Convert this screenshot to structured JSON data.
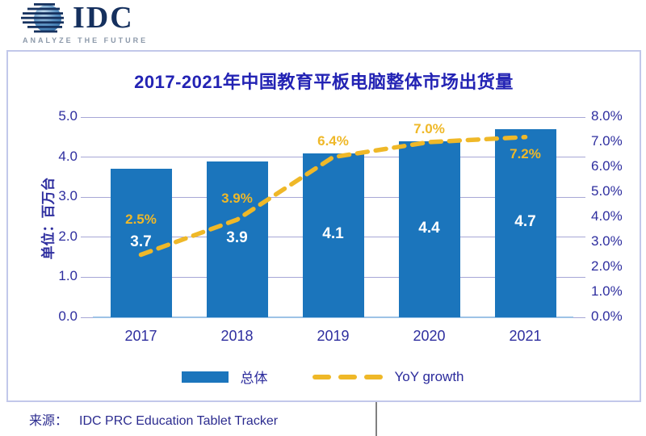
{
  "logo": {
    "brand": "IDC",
    "tagline": "ANALYZE THE FUTURE"
  },
  "chart": {
    "title": "2017-2021年中国教育平板电脑整体市场出货量",
    "y_axis_unit_label": "单位：百万台",
    "legend": [
      {
        "label": "总体"
      },
      {
        "label": "YoY growth"
      }
    ]
  },
  "chart_data": {
    "type": "bar+line",
    "title": "2017-2021年中国教育平板电脑整体市场出货量",
    "categories": [
      "2017",
      "2018",
      "2019",
      "2020",
      "2021"
    ],
    "series": [
      {
        "name": "总体",
        "type": "bar",
        "axis": "left",
        "values": [
          3.7,
          3.9,
          4.1,
          4.4,
          4.7
        ],
        "labels": [
          "3.7",
          "3.9",
          "4.1",
          "4.4",
          "4.7"
        ]
      },
      {
        "name": "YoY growth",
        "type": "line",
        "axis": "right",
        "values": [
          2.5,
          3.9,
          6.4,
          7.0,
          7.2
        ],
        "labels": [
          "2.5%",
          "3.9%",
          "6.4%",
          "7.0%",
          "7.2%"
        ],
        "label_dy": [
          -44,
          -26,
          -20,
          -16,
          21
        ]
      }
    ],
    "left_axis": {
      "label": "单位：百万台",
      "min": 0,
      "max": 5,
      "tick_step": 1,
      "tick_labels": [
        "0.0",
        "1.0",
        "2.0",
        "3.0",
        "4.0",
        "5.0"
      ]
    },
    "right_axis": {
      "min": 0,
      "max": 8,
      "tick_step": 1,
      "tick_labels": [
        "0.0%",
        "1.0%",
        "2.0%",
        "3.0%",
        "4.0%",
        "5.0%",
        "6.0%",
        "7.0%",
        "8.0%"
      ]
    },
    "grid": true,
    "legend_position": "bottom"
  },
  "colors": {
    "bar": "#1B75BC",
    "line": "#EFB828",
    "grid": "#A7A7D6",
    "baseline": "#9DC3E6",
    "axis_text": "#2E2E9F",
    "title_text": "#2323B4",
    "panel_border": "#C2C8EA",
    "bar_label": "#FFFFFF",
    "logo_navy": "#15305E",
    "tagline_gray": "#8B98A9",
    "footer_text": "#2B2B8F",
    "divider_gray": "#808080"
  },
  "footer": {
    "source_label": "来源：",
    "source_text": "IDC PRC Education Tablet Tracker"
  }
}
